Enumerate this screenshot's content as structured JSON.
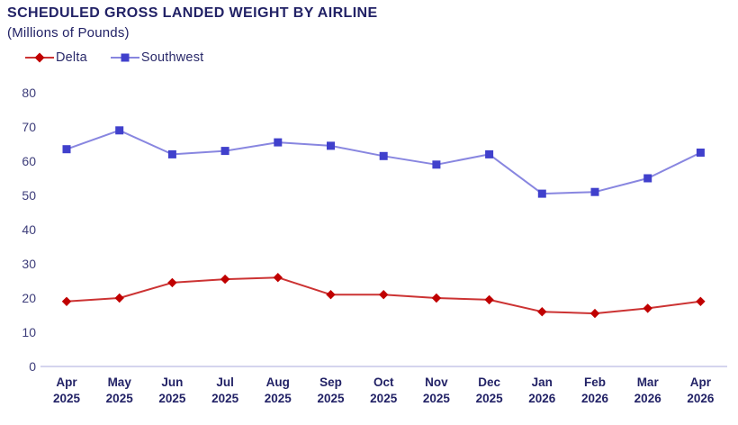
{
  "chart_data": {
    "type": "line",
    "title": "SCHEDULED GROSS LANDED WEIGHT BY AIRLINE",
    "subtitle": "(Millions of Pounds)",
    "categories": [
      {
        "month": "Apr",
        "year": "2025"
      },
      {
        "month": "May",
        "year": "2025"
      },
      {
        "month": "Jun",
        "year": "2025"
      },
      {
        "month": "Jul",
        "year": "2025"
      },
      {
        "month": "Aug",
        "year": "2025"
      },
      {
        "month": "Sep",
        "year": "2025"
      },
      {
        "month": "Oct",
        "year": "2025"
      },
      {
        "month": "Nov",
        "year": "2025"
      },
      {
        "month": "Dec",
        "year": "2025"
      },
      {
        "month": "Jan",
        "year": "2026"
      },
      {
        "month": "Feb",
        "year": "2026"
      },
      {
        "month": "Mar",
        "year": "2026"
      },
      {
        "month": "Apr",
        "year": "2026"
      }
    ],
    "series": [
      {
        "name": "Delta",
        "marker": "diamond",
        "marker_color": "#C00000",
        "line_color": "#CC3333",
        "values": [
          19,
          20,
          24.5,
          25.5,
          26,
          21,
          21,
          20,
          19.5,
          16,
          15.5,
          17,
          19
        ]
      },
      {
        "name": "Southwest",
        "marker": "square",
        "marker_color": "#4040CC",
        "line_color": "#8886E0",
        "values": [
          63.5,
          69,
          62,
          63,
          65.5,
          64.5,
          61.5,
          59,
          62,
          50.5,
          51,
          55,
          62.5
        ]
      }
    ],
    "xlabel": "",
    "ylabel": "",
    "ylim": [
      0,
      80
    ],
    "yticks": [
      0,
      10,
      20,
      30,
      40,
      50,
      60,
      70,
      80
    ],
    "grid": false,
    "legend_position": "top-left",
    "axis_line_color": "#C6C6E8",
    "ytick_color": "#3D3D7A",
    "xtick_color": "#222266"
  }
}
